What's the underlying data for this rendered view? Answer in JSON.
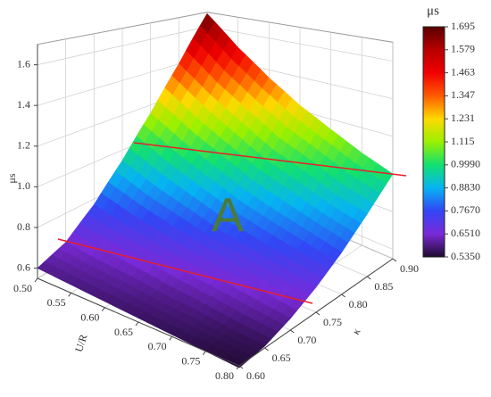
{
  "chart_data": {
    "type": "surface",
    "xlabel": "U/R",
    "ylabel": "κ",
    "zlabel": "μs",
    "x": [
      0.5,
      0.55,
      0.6,
      0.65,
      0.7,
      0.75,
      0.8
    ],
    "y": [
      0.6,
      0.65,
      0.7,
      0.75,
      0.8,
      0.85,
      0.9
    ],
    "z": [
      [
        0.6,
        0.65,
        0.77,
        0.94,
        1.15,
        1.4,
        1.69
      ],
      [
        0.59,
        0.63,
        0.73,
        0.87,
        1.05,
        1.26,
        1.5
      ],
      [
        0.58,
        0.62,
        0.7,
        0.82,
        0.97,
        1.15,
        1.35
      ],
      [
        0.57,
        0.6,
        0.67,
        0.77,
        0.9,
        1.05,
        1.23
      ],
      [
        0.56,
        0.59,
        0.65,
        0.74,
        0.85,
        0.99,
        1.14
      ],
      [
        0.55,
        0.57,
        0.63,
        0.71,
        0.81,
        0.92,
        1.06
      ],
      [
        0.54,
        0.56,
        0.61,
        0.68,
        0.77,
        0.88,
        1.0
      ]
    ],
    "xlim": [
      0.5,
      0.8
    ],
    "ylim": [
      0.6,
      0.9
    ],
    "zlim": [
      0.55,
      1.7
    ],
    "xticks": [
      {
        "value": 0.5,
        "label": "0.50"
      },
      0.55,
      {
        "value": 0.6,
        "label": "0.60"
      },
      0.65,
      {
        "value": 0.7,
        "label": "0.70"
      },
      0.75,
      {
        "value": 0.8,
        "label": "0.80"
      }
    ],
    "yticks": [
      {
        "value": 0.6,
        "label": "0.60"
      },
      0.65,
      {
        "value": 0.7,
        "label": "0.70"
      },
      0.75,
      {
        "value": 0.8,
        "label": "0.80"
      },
      0.85,
      {
        "value": 0.9,
        "label": "0.90"
      }
    ],
    "zticks": [
      0.6,
      0.8,
      {
        "value": 1.0,
        "label": "1.0"
      },
      1.2,
      1.4,
      1.6
    ],
    "grid": true,
    "colorbar": {
      "title": "μs",
      "ticks": [
        {
          "value": 0.535,
          "label": "0.5350"
        },
        {
          "value": 0.651,
          "label": "0.6510"
        },
        {
          "value": 0.767,
          "label": "0.7670"
        },
        {
          "value": 0.883,
          "label": "0.8830"
        },
        {
          "value": 0.999,
          "label": "0.9990"
        },
        1.115,
        1.231,
        1.347,
        1.463,
        1.579,
        1.695
      ],
      "colors": [
        "#1e0a2e",
        "#7a2ad8",
        "#3246f5",
        "#06b4f2",
        "#12e070",
        "#9af000",
        "#ffd800",
        "#ff5a00",
        "#f00000",
        "#b80000",
        "#5a0000"
      ]
    },
    "annotation": "A"
  }
}
